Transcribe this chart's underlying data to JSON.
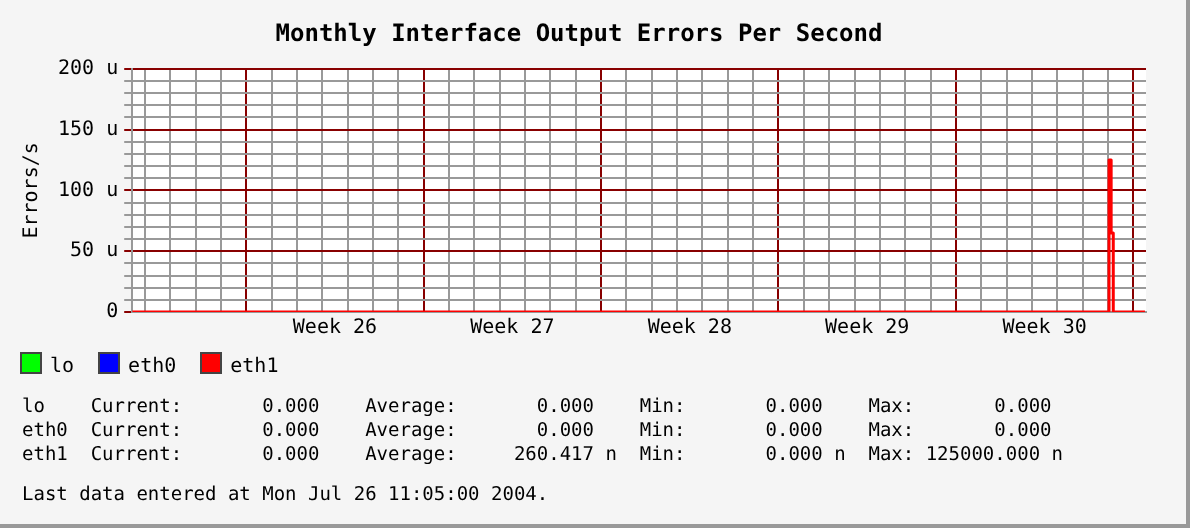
{
  "chart_data": {
    "type": "step",
    "title": "Monthly Interface Output Errors Per Second",
    "ylabel": "Errors/s",
    "xlim": [
      "2004-06-16T12:00",
      "2004-07-26T12:00"
    ],
    "xticks": [
      {
        "value": "2004-06-17T00:00",
        "label": null
      },
      {
        "value": "2004-06-18T00:00",
        "label": null
      },
      {
        "value": "2004-06-19T00:00",
        "label": null
      },
      {
        "value": "2004-06-20T00:00",
        "label": null
      },
      {
        "value": "2004-06-21T00:00",
        "label": null
      },
      {
        "value": "2004-06-22T00:00",
        "label": null
      },
      {
        "value": "2004-06-23T00:00",
        "label": null
      },
      {
        "value": "2004-06-24T00:00",
        "label": null
      },
      {
        "value": "2004-06-24T12:00",
        "label": "Week 26"
      },
      {
        "value": "2004-06-25T00:00",
        "label": null
      },
      {
        "value": "2004-06-26T00:00",
        "label": null
      },
      {
        "value": "2004-06-27T00:00",
        "label": null
      },
      {
        "value": "2004-06-28T00:00",
        "label": null
      },
      {
        "value": "2004-06-29T00:00",
        "label": null
      },
      {
        "value": "2004-06-30T00:00",
        "label": null
      },
      {
        "value": "2004-07-01T00:00",
        "label": null
      },
      {
        "value": "2004-07-01T12:00",
        "label": "Week 27"
      },
      {
        "value": "2004-07-02T00:00",
        "label": null
      },
      {
        "value": "2004-07-03T00:00",
        "label": null
      },
      {
        "value": "2004-07-04T00:00",
        "label": null
      },
      {
        "value": "2004-07-05T00:00",
        "label": null
      },
      {
        "value": "2004-07-06T00:00",
        "label": null
      },
      {
        "value": "2004-07-07T00:00",
        "label": null
      },
      {
        "value": "2004-07-08T00:00",
        "label": null
      },
      {
        "value": "2004-07-08T12:00",
        "label": "Week 28"
      },
      {
        "value": "2004-07-09T00:00",
        "label": null
      },
      {
        "value": "2004-07-10T00:00",
        "label": null
      },
      {
        "value": "2004-07-11T00:00",
        "label": null
      },
      {
        "value": "2004-07-12T00:00",
        "label": null
      },
      {
        "value": "2004-07-13T00:00",
        "label": null
      },
      {
        "value": "2004-07-14T00:00",
        "label": null
      },
      {
        "value": "2004-07-15T00:00",
        "label": null
      },
      {
        "value": "2004-07-15T12:00",
        "label": "Week 29"
      },
      {
        "value": "2004-07-16T00:00",
        "label": null
      },
      {
        "value": "2004-07-17T00:00",
        "label": null
      },
      {
        "value": "2004-07-18T00:00",
        "label": null
      },
      {
        "value": "2004-07-19T00:00",
        "label": null
      },
      {
        "value": "2004-07-20T00:00",
        "label": null
      },
      {
        "value": "2004-07-21T00:00",
        "label": null
      },
      {
        "value": "2004-07-22T00:00",
        "label": null
      },
      {
        "value": "2004-07-22T12:00",
        "label": "Week 30"
      },
      {
        "value": "2004-07-23T00:00",
        "label": null
      },
      {
        "value": "2004-07-24T00:00",
        "label": null
      },
      {
        "value": "2004-07-25T00:00",
        "label": null
      },
      {
        "value": "2004-07-26T00:00",
        "label": null
      }
    ],
    "ylim": [
      0,
      200
    ],
    "yticks": [
      {
        "value": 0,
        "label": "0"
      },
      {
        "value": 10,
        "label": null
      },
      {
        "value": 20,
        "label": null
      },
      {
        "value": 30,
        "label": null
      },
      {
        "value": 40,
        "label": null
      },
      {
        "value": 50,
        "label": "50 u"
      },
      {
        "value": 60,
        "label": null
      },
      {
        "value": 70,
        "label": null
      },
      {
        "value": 80,
        "label": null
      },
      {
        "value": 90,
        "label": null
      },
      {
        "value": 100,
        "label": "100 u"
      },
      {
        "value": 110,
        "label": null
      },
      {
        "value": 120,
        "label": null
      },
      {
        "value": 130,
        "label": null
      },
      {
        "value": 140,
        "label": null
      },
      {
        "value": 150,
        "label": "150 u"
      },
      {
        "value": 160,
        "label": null
      },
      {
        "value": 170,
        "label": null
      },
      {
        "value": 180,
        "label": null
      },
      {
        "value": 190,
        "label": null
      },
      {
        "value": 200,
        "label": "200 u"
      }
    ],
    "grid": true,
    "legend": "bottom left",
    "series": [
      {
        "name": "lo",
        "color": "#00ff00"
      },
      {
        "name": "eth0",
        "color": "#0000ff"
      },
      {
        "name": "eth1",
        "color": "#ff0000",
        "x": [
          "2004-06-16T12:00",
          "2004-07-25T00:00",
          "2004-07-25T01:00",
          "2004-07-25T03:00",
          "2004-07-25T05:00",
          "2004-07-26T11:00"
        ],
        "values": [
          0,
          0,
          125,
          65,
          0,
          0
        ]
      }
    ],
    "annotations": [
      "lo    Current:       0.000    Average:       0.000    Min:       0.000    Max:       0.000",
      "eth0  Current:       0.000    Average:       0.000    Min:       0.000    Max:       0.000",
      "eth1  Current:       0.000    Average:     260.417 n  Min:       0.000 n  Max: 125000.000 n",
      "Last data entered at Mon Jul 26 11:05:00 2004."
    ]
  }
}
